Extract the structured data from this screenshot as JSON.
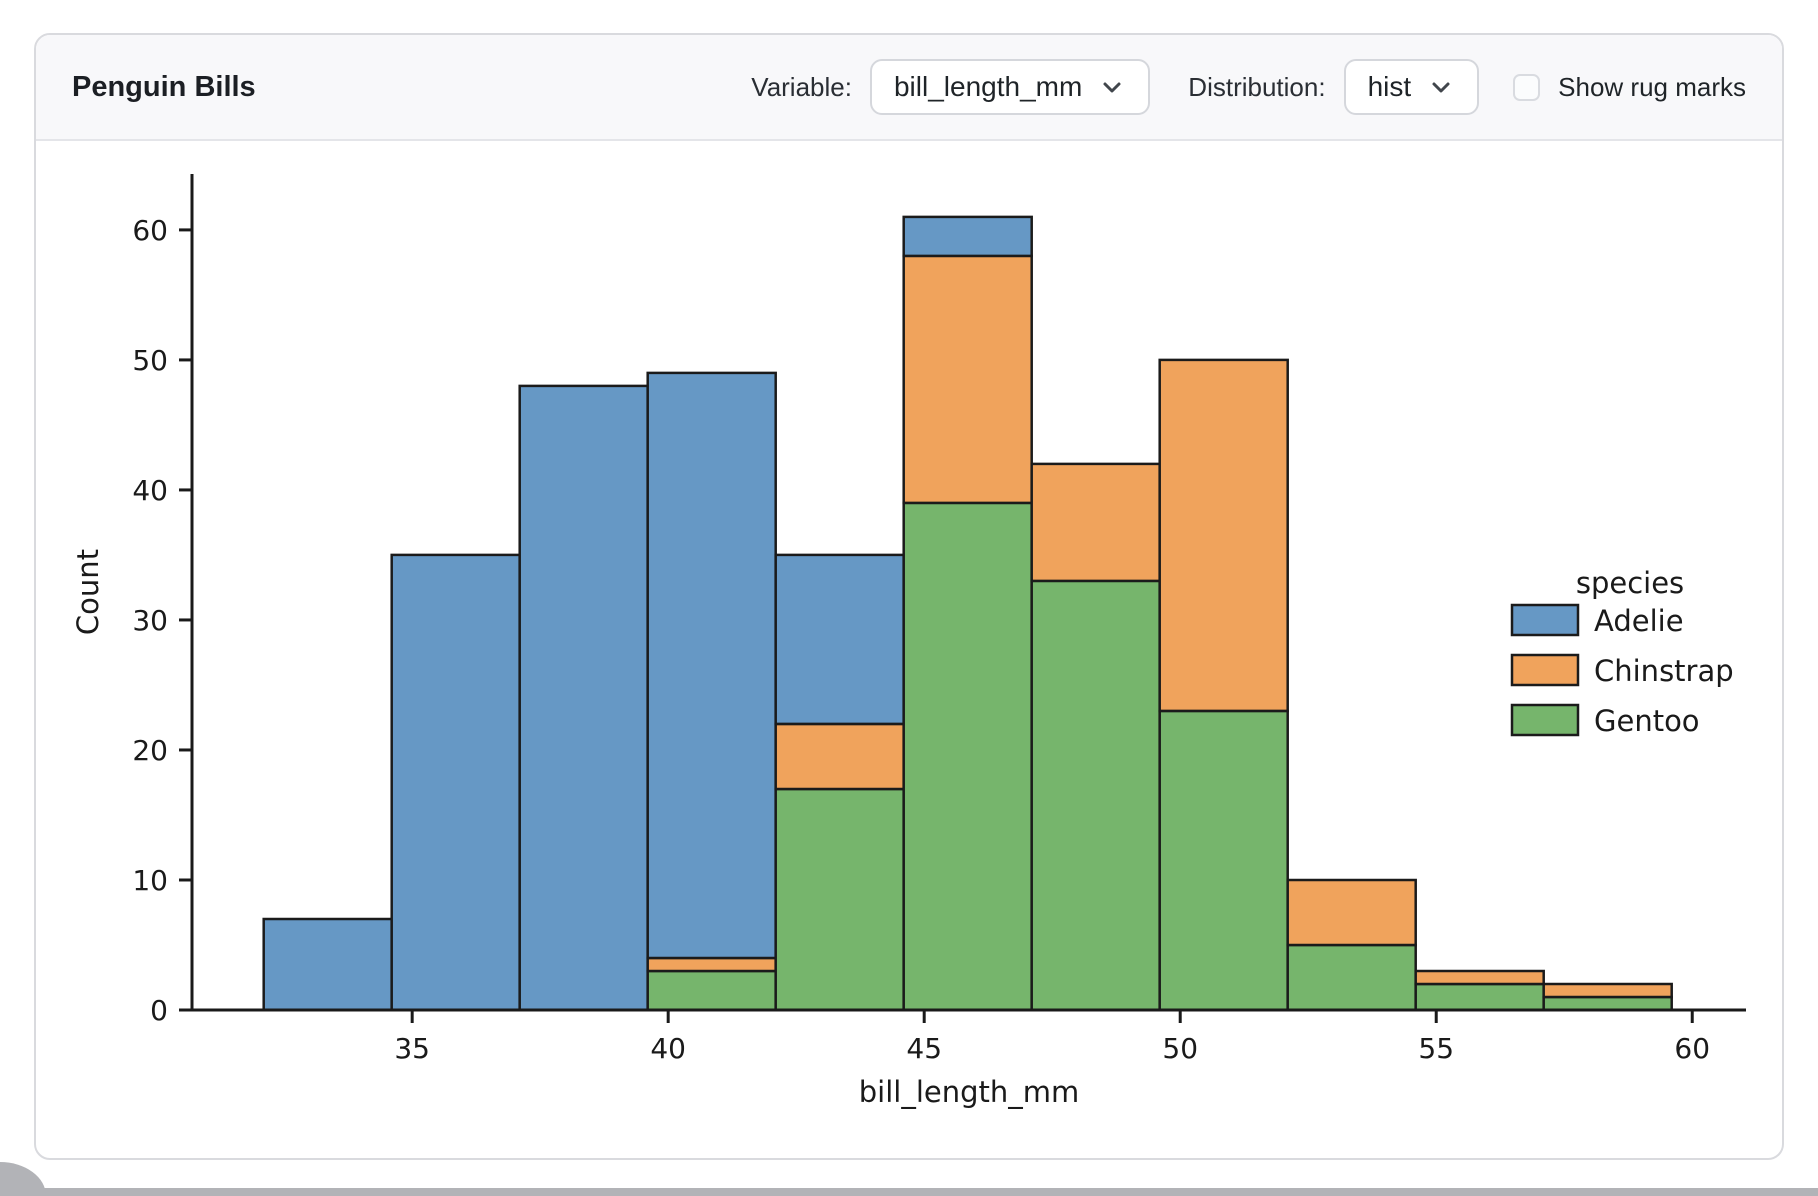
{
  "header": {
    "title": "Penguin Bills",
    "variable_label": "Variable:",
    "variable_value": "bill_length_mm",
    "distribution_label": "Distribution:",
    "distribution_value": "hist",
    "rug_label": "Show rug marks",
    "rug_checked": false
  },
  "chart_data": {
    "type": "bar",
    "subtype": "stacked-histogram",
    "xlabel": "bill_length_mm",
    "ylabel": "Count",
    "bin_start": 32.1,
    "bin_width": 2.5,
    "bin_count": 11,
    "series": [
      {
        "name": "Adelie",
        "color": "#6698c5",
        "values": [
          7,
          35,
          48,
          45,
          13,
          3,
          0,
          0,
          0,
          0,
          0
        ]
      },
      {
        "name": "Chinstrap",
        "color": "#f0a35c",
        "values": [
          0,
          0,
          0,
          1,
          5,
          19,
          9,
          27,
          5,
          1,
          1
        ]
      },
      {
        "name": "Gentoo",
        "color": "#76b56c",
        "values": [
          0,
          0,
          0,
          3,
          17,
          39,
          33,
          23,
          5,
          2,
          1
        ]
      }
    ],
    "stack_order": [
      "Gentoo",
      "Chinstrap",
      "Adelie"
    ],
    "totals": [
      7,
      35,
      48,
      49,
      35,
      61,
      42,
      50,
      10,
      3,
      2
    ],
    "x_ticks": [
      35,
      40,
      45,
      50,
      55,
      60
    ],
    "y_ticks": [
      0,
      10,
      20,
      30,
      40,
      50,
      60
    ],
    "xlim": [
      30.7,
      61.05
    ],
    "ylim": [
      0,
      64.3
    ],
    "grid": false,
    "legend": {
      "title": "species",
      "position": "right",
      "entries": [
        "Adelie",
        "Chinstrap",
        "Gentoo"
      ]
    },
    "edge_color": "#1b1b1b",
    "axis_color": "#1a1a1a",
    "text_color": "#1a1a1a"
  }
}
